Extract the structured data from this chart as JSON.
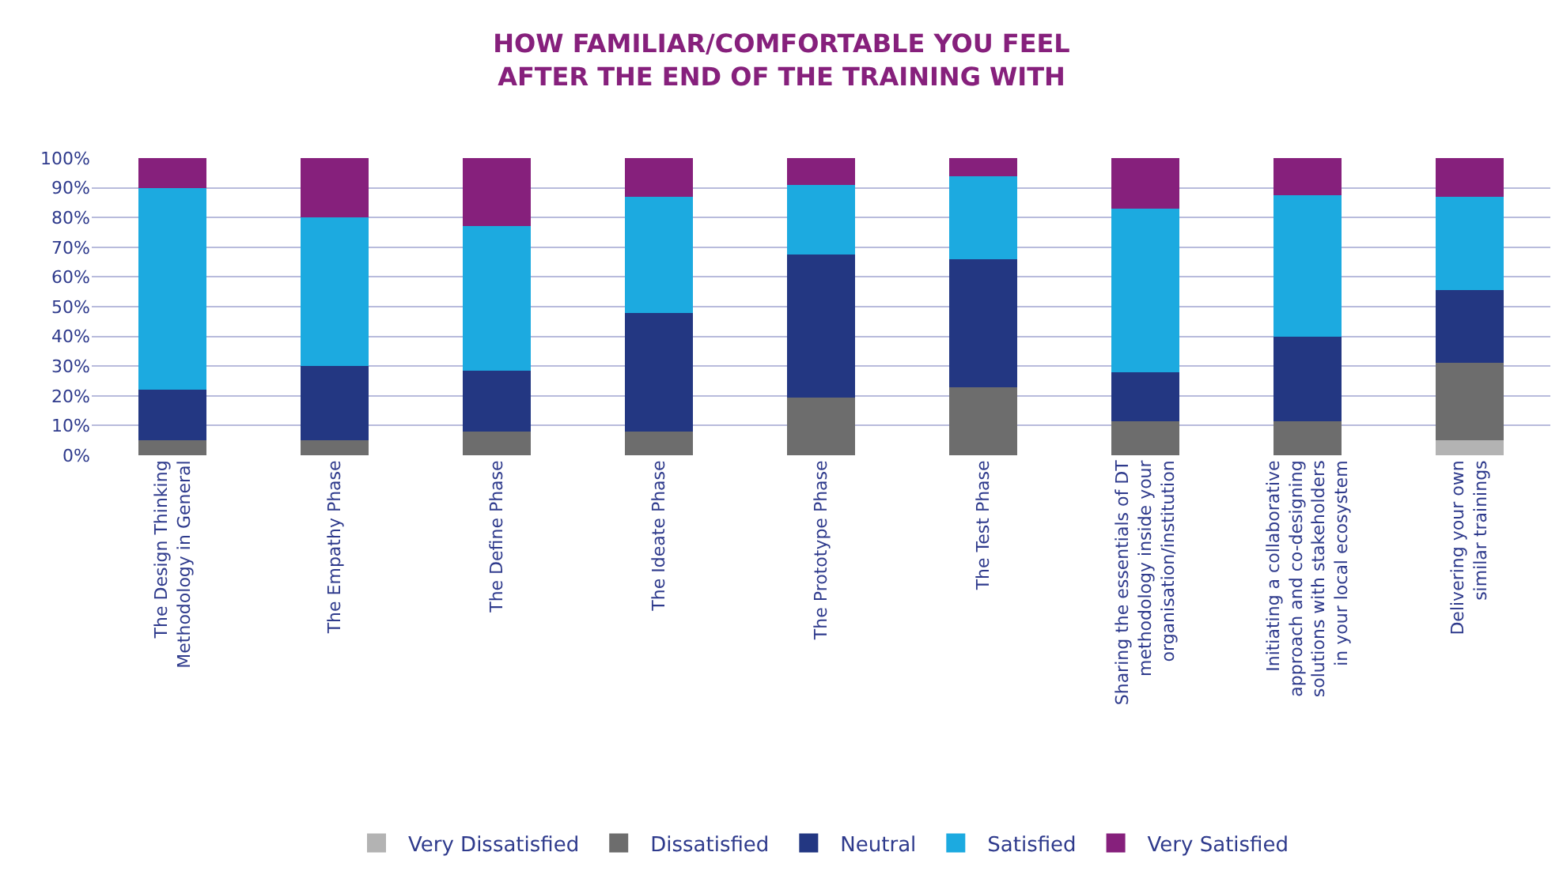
{
  "chart_data": {
    "type": "bar",
    "stacked": true,
    "title": "HOW FAMILIAR/COMFORTABLE YOU FEEL\nAFTER THE END OF THE TRAINING WITH",
    "categories": [
      "The Design Thinking\nMethodology in General",
      "The Empathy Phase",
      "The Define Phase",
      "The Ideate Phase",
      "The Prototype Phase",
      "The Test Phase",
      "Sharing the essentials of DT\nmethodology inside your\norganisation/institution",
      "Initiating a collaborative\napproach and co-designing\nsolutions with stakeholders\nin your local ecosystem",
      "Delivering your own\nsimilar trainings"
    ],
    "series": [
      {
        "name": "Very Dissatisfied",
        "color": "#b3b3b3",
        "values": [
          0,
          0,
          0,
          0,
          0,
          0,
          0,
          0,
          5
        ]
      },
      {
        "name": "Dissatisfied",
        "color": "#6d6d6d",
        "values": [
          5,
          5,
          8,
          8,
          19.5,
          23,
          11.5,
          11.5,
          26
        ]
      },
      {
        "name": "Neutral",
        "color": "#233782",
        "values": [
          17,
          25,
          20.5,
          40,
          48,
          43,
          16.5,
          28.5,
          24.5
        ]
      },
      {
        "name": "Satisfied",
        "color": "#1caae0",
        "values": [
          68,
          50,
          48.5,
          39,
          23.5,
          28,
          55,
          47.5,
          31.5
        ]
      },
      {
        "name": "Very Satisfied",
        "color": "#86207c",
        "values": [
          10,
          20,
          23,
          13,
          9,
          6,
          17,
          12.5,
          13
        ]
      }
    ],
    "ylim": [
      0,
      100
    ],
    "yticks": [
      {
        "value": 0,
        "label": "0%"
      },
      {
        "value": 10,
        "label": "10%"
      },
      {
        "value": 20,
        "label": "20%"
      },
      {
        "value": 30,
        "label": "30%"
      },
      {
        "value": 40,
        "label": "40%"
      },
      {
        "value": 50,
        "label": "50%"
      },
      {
        "value": 60,
        "label": "60%"
      },
      {
        "value": 70,
        "label": "70%"
      },
      {
        "value": 80,
        "label": "80%"
      },
      {
        "value": 90,
        "label": "90%"
      },
      {
        "value": 100,
        "label": "100%"
      }
    ],
    "grid": "y",
    "legend": "bottom"
  }
}
